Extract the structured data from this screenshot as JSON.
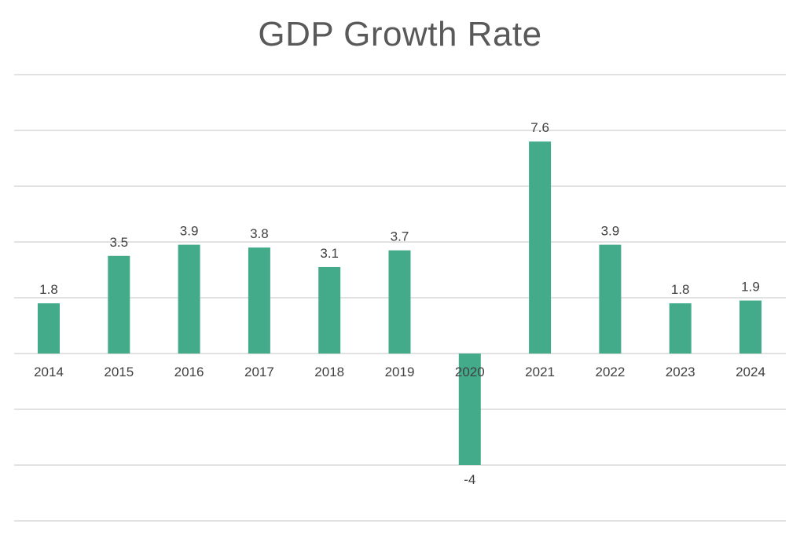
{
  "chart_data": {
    "type": "bar",
    "title": "GDP Growth Rate",
    "categories": [
      "2014",
      "2015",
      "2016",
      "2017",
      "2018",
      "2019",
      "2020",
      "2021",
      "2022",
      "2023",
      "2024"
    ],
    "values": [
      1.8,
      3.5,
      3.9,
      3.8,
      3.1,
      3.7,
      -4,
      7.6,
      3.9,
      1.8,
      1.9
    ],
    "data_labels": [
      "1.8",
      "3.5",
      "3.9",
      "3.8",
      "3.1",
      "3.7",
      "-4",
      "7.6",
      "3.9",
      "1.8",
      "1.9"
    ],
    "xlabel": "",
    "ylabel": "",
    "ylim": [
      -6,
      10
    ],
    "gridlines": true,
    "y_tick_labels_visible": false,
    "legend": "none",
    "bar_color": "#43ab8a"
  }
}
